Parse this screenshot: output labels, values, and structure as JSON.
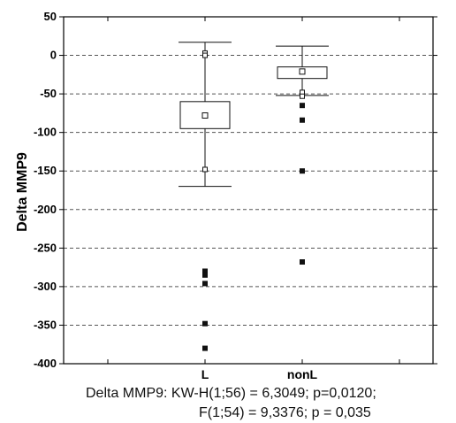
{
  "chart_data": {
    "type": "boxplot",
    "ylabel": "Delta MMP9",
    "xlabel": "",
    "ylim": [
      -400,
      50
    ],
    "yticks": [
      50,
      0,
      -50,
      -100,
      -150,
      -200,
      -250,
      -300,
      -350,
      -400
    ],
    "grid": "horizontal dashed",
    "categories": [
      "L",
      "nonL"
    ],
    "boxes": [
      {
        "category": "L",
        "whisker_high": 17,
        "q3": -60,
        "median": -78,
        "q1": -95,
        "whisker_low": -170,
        "open_points": [
          3,
          0,
          -148
        ],
        "outliers": [
          -280,
          -285,
          -296,
          -348,
          -380
        ]
      },
      {
        "category": "nonL",
        "whisker_high": 12,
        "q3": -15,
        "median": -21,
        "q1": -30,
        "whisker_low": -52,
        "open_points": [
          -48,
          -53
        ],
        "outliers": [
          -65,
          -84,
          -150,
          -268
        ]
      }
    ],
    "annotation_lines": [
      "Delta MMP9: KW-H(1;56) = 6,3049; p=0,0120;",
      "F(1;54) = 9,3376; p = 0,035"
    ]
  },
  "colors": {
    "axis": "#000000",
    "grid": "#555555",
    "mark": "#111111"
  }
}
